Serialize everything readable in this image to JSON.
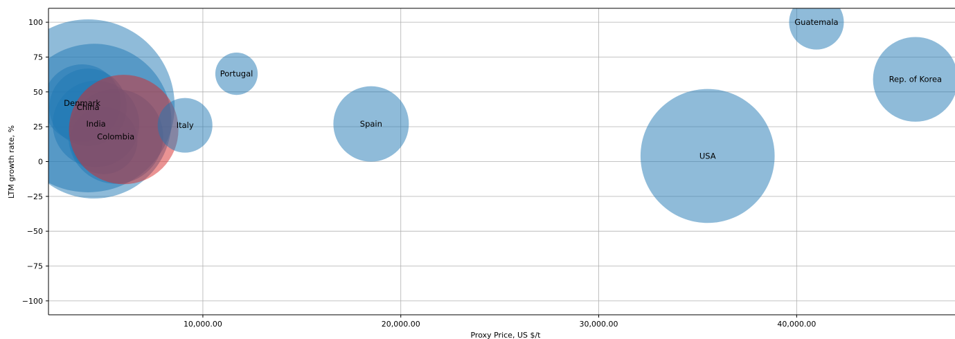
{
  "chart_data": {
    "type": "scatter",
    "xlabel": "Proxy Price, US $/t",
    "ylabel": "LTM growth rate, %",
    "xlim": [
      2200,
      48000
    ],
    "ylim": [
      -110,
      110
    ],
    "grid": true,
    "x_ticks": [
      {
        "value": 10000,
        "label": "10,000.00"
      },
      {
        "value": 20000,
        "label": "20,000.00"
      },
      {
        "value": 30000,
        "label": "30,000.00"
      },
      {
        "value": 40000,
        "label": "40,000.00"
      }
    ],
    "y_ticks": [
      {
        "value": 100,
        "label": "100"
      },
      {
        "value": 75,
        "label": "75"
      },
      {
        "value": 50,
        "label": "50"
      },
      {
        "value": 25,
        "label": "25"
      },
      {
        "value": 0,
        "label": "0"
      },
      {
        "value": -25,
        "label": "−25"
      },
      {
        "value": -50,
        "label": "−50"
      },
      {
        "value": -75,
        "label": "−75"
      },
      {
        "value": -100,
        "label": "−100"
      }
    ],
    "colors": {
      "default": "#1f77b4",
      "highlight": "#d62728",
      "bubble_opacity": 0.5
    },
    "points": [
      {
        "label": "",
        "x": 4200,
        "y": 40,
        "size": 100,
        "color": "#1f77b4"
      },
      {
        "label": "",
        "x": 4500,
        "y": 29,
        "size": 80,
        "color": "#1f77b4"
      },
      {
        "label": "Denmark",
        "x": 3900,
        "y": 42,
        "size": 20,
        "color": "#1f77b4"
      },
      {
        "label": "China",
        "x": 4200,
        "y": 39,
        "size": 20,
        "color": "#1f77b4"
      },
      {
        "label": "India",
        "x": 4600,
        "y": 27,
        "size": 25,
        "color": "#1f77b4"
      },
      {
        "label": "Colombia",
        "x": 5600,
        "y": 18,
        "size": 30,
        "color": "#1f77b4"
      },
      {
        "label": "",
        "x": 5000,
        "y": 15,
        "size": 15,
        "color": "#1f77b4"
      },
      {
        "label": "",
        "x": 6000,
        "y": 23,
        "size": 40,
        "color": "#d62728"
      },
      {
        "label": "Italy",
        "x": 9100,
        "y": 26,
        "size": 10,
        "color": "#1f77b4"
      },
      {
        "label": "Portugal",
        "x": 11700,
        "y": 63,
        "size": 6,
        "color": "#1f77b4"
      },
      {
        "label": "Spain",
        "x": 18500,
        "y": 27,
        "size": 19,
        "color": "#1f77b4"
      },
      {
        "label": "USA",
        "x": 35500,
        "y": 4,
        "size": 60,
        "color": "#1f77b4"
      },
      {
        "label": "Guatemala",
        "x": 41000,
        "y": 100,
        "size": 10,
        "color": "#1f77b4"
      },
      {
        "label": "Rep. of Korea",
        "x": 46000,
        "y": 59,
        "size": 24,
        "color": "#1f77b4"
      }
    ]
  }
}
